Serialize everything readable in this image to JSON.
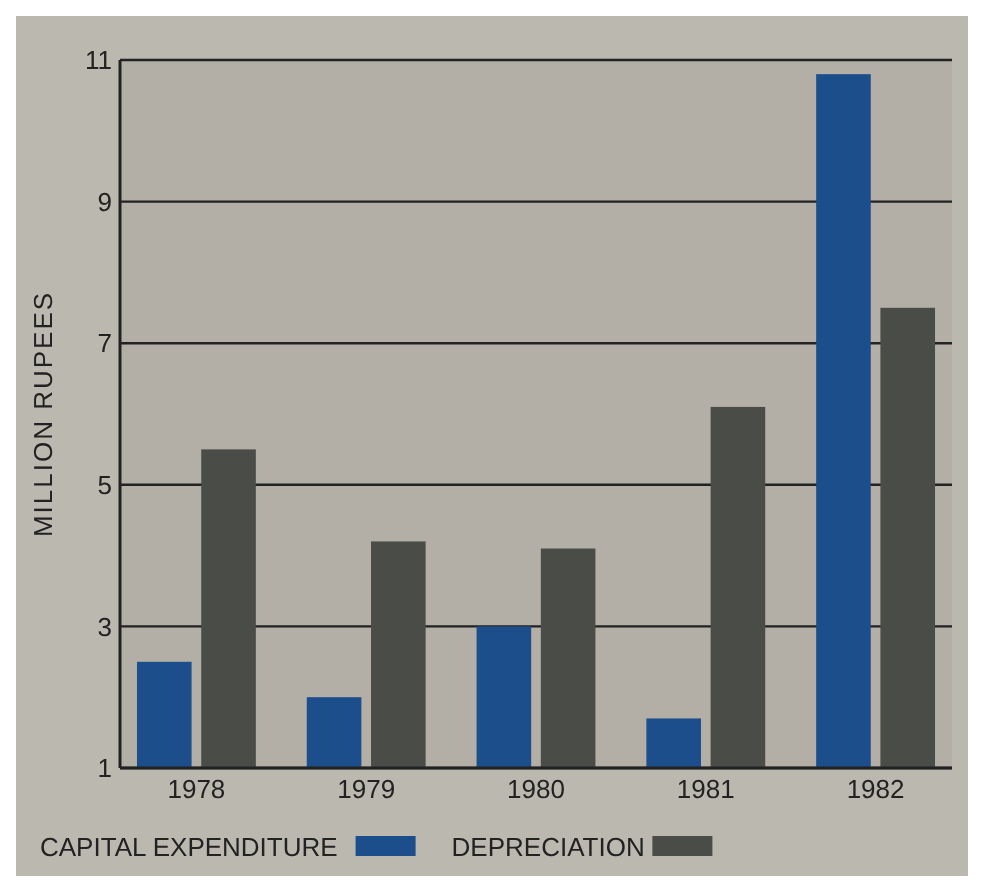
{
  "chart_data": {
    "type": "bar",
    "ylabel": "MILLION RUPEES",
    "categories": [
      "1978",
      "1979",
      "1980",
      "1981",
      "1982"
    ],
    "series": [
      {
        "name": "CAPITAL EXPENDITURE",
        "color": "#1d4e8c",
        "values": [
          2.5,
          2.0,
          3.0,
          1.7,
          10.8
        ]
      },
      {
        "name": "DEPRECIATION",
        "color": "#4a4d47",
        "values": [
          5.5,
          4.2,
          4.1,
          6.1,
          7.5
        ]
      }
    ],
    "ylim": [
      1,
      11
    ],
    "yticks": [
      1,
      3,
      5,
      7,
      9,
      11
    ],
    "grid": "y",
    "legend": "bottom"
  }
}
